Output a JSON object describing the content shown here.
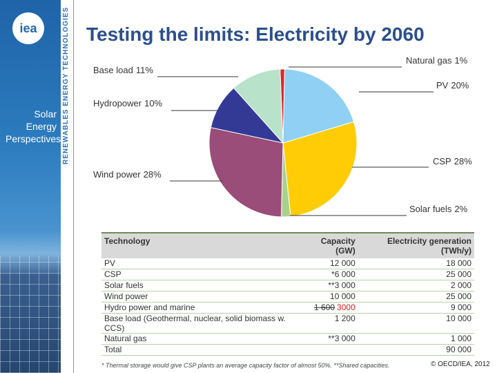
{
  "sidebar": {
    "logo": "iea",
    "vertical_text": "RENEWABLES ENERGY TECHNOLOGIES",
    "series_title": [
      "Solar",
      "Energy",
      "Perspectives"
    ]
  },
  "title": "Testing the limits: Electricity by 2060",
  "chart_data": {
    "type": "pie",
    "categories": [
      "Natural gas",
      "PV",
      "CSP",
      "Solar fuels",
      "Wind power",
      "Hydropower",
      "Base load"
    ],
    "values": [
      1,
      20,
      28,
      2,
      28,
      10,
      11
    ],
    "value_labels": [
      "1%",
      "20%",
      "28%",
      "2%",
      "28%",
      "10%",
      "11%"
    ],
    "colors": [
      "#e0262b",
      "#8fd0f4",
      "#ffcc05",
      "#a9d18e",
      "#9a4d78",
      "#333a96",
      "#b9e2cb"
    ]
  },
  "table": {
    "header": [
      "Technology",
      "Capacity (GW)",
      "Electricity generation (TWh/y)"
    ],
    "rows": [
      [
        "PV",
        "12 000",
        "18 000"
      ],
      [
        "CSP",
        "*6 000",
        "25 000"
      ],
      [
        "Solar fuels",
        "**3 000",
        "2 000"
      ],
      [
        "Wind power",
        "10 000",
        "25 000"
      ],
      [
        "Hydro power and marine",
        {
          "struck": "1 600",
          "corrected": "3000"
        },
        "9 000"
      ],
      [
        "Base load (Geothermal, nuclear, solid biomass w. CCS)",
        "1 200",
        "10 000"
      ],
      [
        "Natural gas",
        "**3 000",
        "1 000"
      ]
    ],
    "total": {
      "label": "Total",
      "generation": "90 000"
    },
    "footnote": "* Thermal storage would give CSP plants an average capacity factor of almost 50%. **Shared capacities."
  },
  "copyright": "© OECD/IEA, 2012"
}
